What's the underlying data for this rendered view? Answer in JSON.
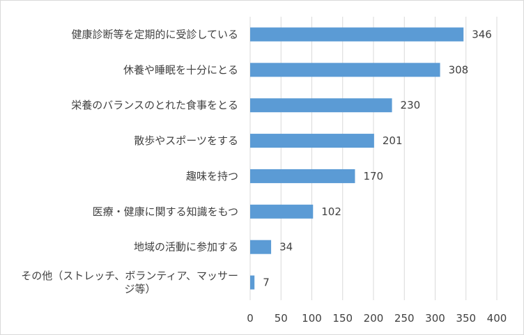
{
  "chart_data": {
    "type": "bar",
    "orientation": "horizontal",
    "title": "",
    "xlabel": "",
    "ylabel": "",
    "categories": [
      "健康診断等を定期的に受診している",
      "休養や睡眠を十分にとる",
      "栄養のバランスのとれた食事をとる",
      "散歩やスポーツをする",
      "趣味を持つ",
      "医療・健康に関する知識をもつ",
      "地域の活動に参加する",
      "その他（ストレッチ、ボランティア、マッサージ等）"
    ],
    "category_label_lines": [
      [
        "健康診断等を定期的に受診している"
      ],
      [
        "休養や睡眠を十分にとる"
      ],
      [
        "栄養のバランスのとれた食事をとる"
      ],
      [
        "散歩やスポーツをする"
      ],
      [
        "趣味を持つ"
      ],
      [
        "医療・健康に関する知識をもつ"
      ],
      [
        "地域の活動に参加する"
      ],
      [
        "その他（ストレッチ、ボランティア、マッサー",
        "ジ等）"
      ]
    ],
    "values": [
      346,
      308,
      230,
      201,
      170,
      102,
      34,
      7
    ],
    "xlim": [
      0,
      400
    ],
    "xticks": [
      0,
      50,
      100,
      150,
      200,
      250,
      300,
      350,
      400
    ],
    "grid": "vertical",
    "legend": "none",
    "colors": {
      "bar": "#5b9bd5",
      "grid": "#d9d9d9",
      "text": "#404040"
    }
  }
}
